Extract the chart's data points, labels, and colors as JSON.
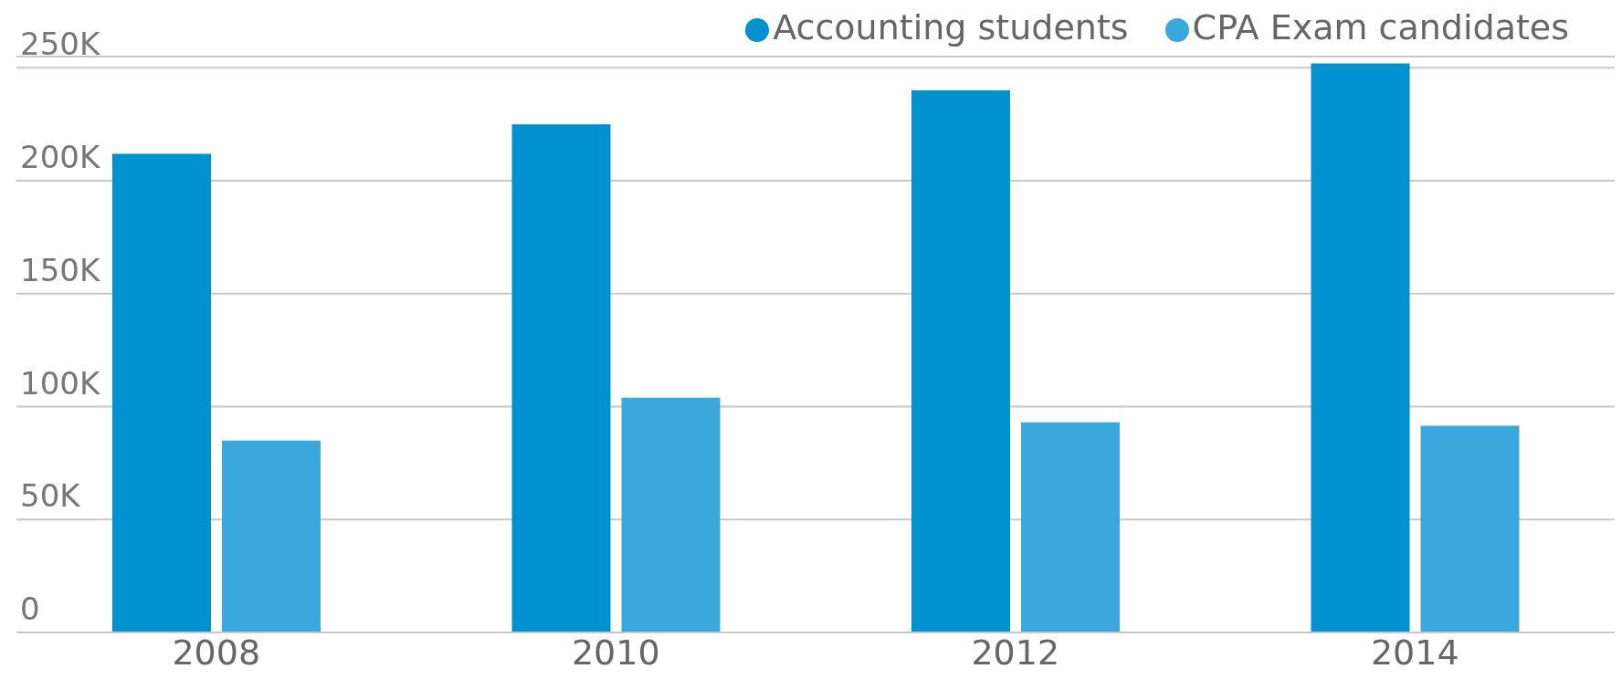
{
  "chart_data": {
    "type": "bar",
    "categories": [
      "2008",
      "2010",
      "2012",
      "2014"
    ],
    "series": [
      {
        "name": "Accounting students",
        "color": "#0091d0",
        "values": [
          212000,
          225000,
          240000,
          252000
        ]
      },
      {
        "name": "CPA Exam candidates",
        "color": "#3aa8dc",
        "values": [
          85000,
          104000,
          93000,
          91500
        ]
      }
    ],
    "ylim": [
      0,
      255000
    ],
    "yticks": [
      {
        "value": 0,
        "label": "0"
      },
      {
        "value": 50000,
        "label": "50K"
      },
      {
        "value": 100000,
        "label": "100K"
      },
      {
        "value": 150000,
        "label": "150K"
      },
      {
        "value": 200000,
        "label": "200K"
      },
      {
        "value": 250000,
        "label": "250K"
      }
    ],
    "grid": "y",
    "legend": "top right"
  }
}
